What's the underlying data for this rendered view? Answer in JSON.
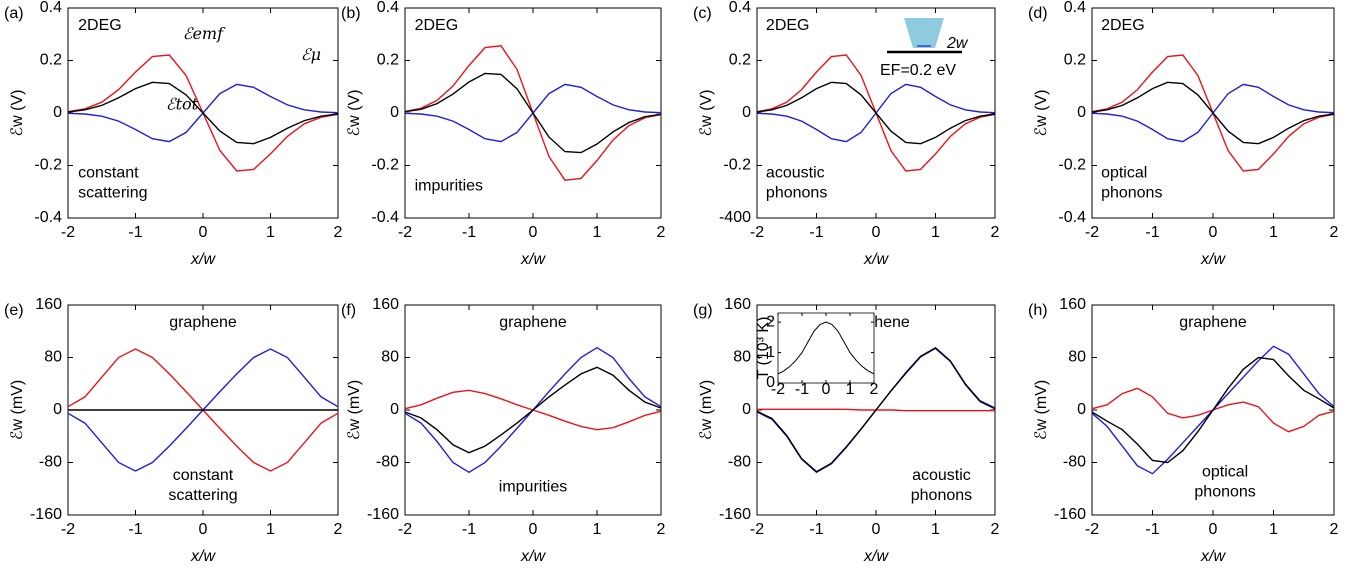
{
  "chart_data": [
    {
      "type": "line",
      "label": "(a)",
      "ylabel": "ℰw (V)",
      "xlabel": "x/w",
      "annotation": "2DEG",
      "note": [
        "constant",
        "scattering"
      ],
      "x": [
        -2,
        -1.75,
        -1.5,
        -1.25,
        -1,
        -0.75,
        -0.5,
        -0.25,
        0,
        0.25,
        0.5,
        0.75,
        1,
        1.25,
        1.5,
        1.75,
        2
      ],
      "xlim": [
        -2,
        2
      ],
      "xticks": [
        -2,
        -1,
        0,
        1,
        2
      ],
      "ylim": [
        -0.4,
        0.4
      ],
      "yticks": [
        -0.4,
        -0.2,
        0,
        0.2,
        0.4
      ],
      "series": [
        {
          "name": "ℰemf",
          "color": "#e8141c",
          "values": [
            0.005,
            0.016,
            0.041,
            0.089,
            0.156,
            0.215,
            0.221,
            0.143,
            0,
            -0.143,
            -0.221,
            -0.215,
            -0.156,
            -0.089,
            -0.041,
            -0.016,
            -0.005
          ]
        },
        {
          "name": "ℰμ",
          "color": "#1f1fd6",
          "values": [
            -0.001,
            -0.004,
            -0.012,
            -0.031,
            -0.063,
            -0.098,
            -0.109,
            -0.074,
            0,
            0.074,
            0.109,
            0.098,
            0.063,
            0.031,
            0.012,
            0.004,
            0.001
          ]
        },
        {
          "name": "ℰtot",
          "color": "#000000",
          "values": [
            0.004,
            0.012,
            0.029,
            0.058,
            0.093,
            0.117,
            0.112,
            0.069,
            0,
            -0.069,
            -0.112,
            -0.117,
            -0.093,
            -0.058,
            -0.029,
            -0.012,
            -0.004
          ]
        }
      ]
    },
    {
      "type": "line",
      "label": "(b)",
      "ylabel": "ℰw (V)",
      "xlabel": "x/w",
      "annotation": "2DEG",
      "note": [
        "impurities"
      ],
      "x": [
        -2,
        -1.75,
        -1.5,
        -1.25,
        -1,
        -0.75,
        -0.5,
        -0.25,
        0,
        0.25,
        0.5,
        0.75,
        1,
        1.25,
        1.5,
        1.75,
        2
      ],
      "xlim": [
        -2,
        2
      ],
      "xticks": [
        -2,
        -1,
        0,
        1,
        2
      ],
      "ylim": [
        -0.4,
        0.4
      ],
      "yticks": [
        -0.4,
        -0.2,
        0,
        0.2,
        0.4
      ],
      "series": [
        {
          "color": "#e8141c",
          "values": [
            0.006,
            0.018,
            0.048,
            0.103,
            0.181,
            0.249,
            0.256,
            0.166,
            0,
            -0.166,
            -0.256,
            -0.249,
            -0.181,
            -0.103,
            -0.048,
            -0.018,
            -0.006
          ]
        },
        {
          "color": "#1f1fd6",
          "values": [
            -0.001,
            -0.004,
            -0.012,
            -0.031,
            -0.063,
            -0.098,
            -0.109,
            -0.074,
            0,
            0.074,
            0.109,
            0.098,
            0.063,
            0.031,
            0.012,
            0.004,
            0.001
          ]
        },
        {
          "color": "#000000",
          "values": [
            0.005,
            0.014,
            0.036,
            0.072,
            0.118,
            0.151,
            0.147,
            0.092,
            0,
            -0.092,
            -0.147,
            -0.151,
            -0.118,
            -0.072,
            -0.036,
            -0.014,
            -0.005
          ]
        }
      ]
    },
    {
      "type": "line",
      "label": "(c)",
      "ylabel": "ℰw (V)",
      "xlabel": "x/w",
      "annotation": "2DEG",
      "note": [
        "acoustic",
        "phonons"
      ],
      "inset_labels": [
        "2w",
        "EF=0.2 eV"
      ],
      "x": [
        -2,
        -1.75,
        -1.5,
        -1.25,
        -1,
        -0.75,
        -0.5,
        -0.25,
        0,
        0.25,
        0.5,
        0.75,
        1,
        1.25,
        1.5,
        1.75,
        2
      ],
      "xlim": [
        -2,
        2
      ],
      "xticks": [
        -2,
        -1,
        0,
        1,
        2
      ],
      "ylim": [
        -0.4,
        0.4
      ],
      "yticks": [
        {
          "value": -0.4,
          "label": "-400"
        },
        -0.2,
        0,
        0.2,
        0.4
      ],
      "series": [
        {
          "color": "#e8141c",
          "values": [
            0.005,
            0.016,
            0.041,
            0.089,
            0.156,
            0.215,
            0.221,
            0.143,
            0,
            -0.143,
            -0.221,
            -0.215,
            -0.156,
            -0.089,
            -0.041,
            -0.016,
            -0.005
          ]
        },
        {
          "color": "#1f1fd6",
          "values": [
            -0.001,
            -0.004,
            -0.012,
            -0.031,
            -0.063,
            -0.098,
            -0.109,
            -0.074,
            0,
            0.074,
            0.109,
            0.098,
            0.063,
            0.031,
            0.012,
            0.004,
            0.001
          ]
        },
        {
          "color": "#000000",
          "values": [
            0.004,
            0.012,
            0.029,
            0.058,
            0.093,
            0.117,
            0.112,
            0.069,
            0,
            -0.069,
            -0.112,
            -0.117,
            -0.093,
            -0.058,
            -0.029,
            -0.012,
            -0.004
          ]
        }
      ]
    },
    {
      "type": "line",
      "label": "(d)",
      "ylabel": "ℰw (V)",
      "xlabel": "x/w",
      "annotation": "2DEG",
      "note": [
        "optical",
        "phonons"
      ],
      "x": [
        -2,
        -1.75,
        -1.5,
        -1.25,
        -1,
        -0.75,
        -0.5,
        -0.25,
        0,
        0.25,
        0.5,
        0.75,
        1,
        1.25,
        1.5,
        1.75,
        2
      ],
      "xlim": [
        -2,
        2
      ],
      "xticks": [
        -2,
        -1,
        0,
        1,
        2
      ],
      "ylim": [
        -0.4,
        0.4
      ],
      "yticks": [
        -0.4,
        -0.2,
        0,
        0.2,
        0.4
      ],
      "series": [
        {
          "color": "#e8141c",
          "values": [
            0.005,
            0.016,
            0.041,
            0.089,
            0.156,
            0.215,
            0.221,
            0.143,
            0,
            -0.143,
            -0.221,
            -0.215,
            -0.156,
            -0.089,
            -0.041,
            -0.016,
            -0.005
          ]
        },
        {
          "color": "#1f1fd6",
          "values": [
            -0.001,
            -0.004,
            -0.012,
            -0.031,
            -0.063,
            -0.098,
            -0.109,
            -0.074,
            0,
            0.074,
            0.109,
            0.098,
            0.063,
            0.031,
            0.012,
            0.004,
            0.001
          ]
        },
        {
          "color": "#000000",
          "values": [
            0.004,
            0.012,
            0.029,
            0.058,
            0.093,
            0.117,
            0.112,
            0.069,
            0,
            -0.069,
            -0.112,
            -0.117,
            -0.093,
            -0.058,
            -0.029,
            -0.012,
            -0.004
          ]
        }
      ]
    },
    {
      "type": "line",
      "label": "(e)",
      "ylabel": "ℰw (mV)",
      "xlabel": "x/w",
      "annotation": "graphene",
      "note": [
        "constant",
        "scattering"
      ],
      "x": [
        -2,
        -1.75,
        -1.5,
        -1.25,
        -1,
        -0.75,
        -0.5,
        -0.25,
        0,
        0.25,
        0.5,
        0.75,
        1,
        1.25,
        1.5,
        1.75,
        2
      ],
      "xlim": [
        -2,
        2
      ],
      "xticks": [
        -2,
        -1,
        0,
        1,
        2
      ],
      "ylim": [
        -160,
        160
      ],
      "yticks": [
        -160,
        -80,
        0,
        80,
        160
      ],
      "series": [
        {
          "color": "#e8141c",
          "values": [
            5,
            20,
            50,
            80,
            93,
            80,
            55,
            28,
            0,
            -28,
            -55,
            -80,
            -93,
            -80,
            -50,
            -20,
            -5
          ]
        },
        {
          "color": "#1f1fd6",
          "values": [
            -5,
            -20,
            -50,
            -80,
            -93,
            -80,
            -55,
            -28,
            0,
            28,
            55,
            80,
            93,
            80,
            50,
            20,
            5
          ]
        },
        {
          "color": "#000000",
          "values": [
            0,
            0,
            0,
            0,
            0,
            0,
            0,
            0,
            0,
            0,
            0,
            0,
            0,
            0,
            0,
            0,
            0
          ]
        }
      ]
    },
    {
      "type": "line",
      "label": "(f)",
      "ylabel": "ℰw (mV)",
      "xlabel": "x/w",
      "annotation": "graphene",
      "note": [
        "impurities"
      ],
      "x": [
        -2,
        -1.75,
        -1.5,
        -1.25,
        -1,
        -0.75,
        -0.5,
        -0.25,
        0,
        0.25,
        0.5,
        0.75,
        1,
        1.25,
        1.5,
        1.75,
        2
      ],
      "xlim": [
        -2,
        2
      ],
      "xticks": [
        -2,
        -1,
        0,
        1,
        2
      ],
      "ylim": [
        -160,
        160
      ],
      "yticks": [
        -160,
        -80,
        0,
        80,
        160
      ],
      "series": [
        {
          "color": "#e8141c",
          "values": [
            2,
            8,
            18,
            27,
            30,
            25,
            17,
            8,
            0,
            -8,
            -17,
            -25,
            -30,
            -27,
            -18,
            -8,
            -2
          ]
        },
        {
          "color": "#1f1fd6",
          "values": [
            -5,
            -20,
            -48,
            -80,
            -95,
            -80,
            -55,
            -28,
            0,
            28,
            55,
            80,
            95,
            80,
            48,
            20,
            5
          ]
        },
        {
          "color": "#000000",
          "values": [
            -3,
            -12,
            -30,
            -53,
            -65,
            -55,
            -38,
            -20,
            0,
            20,
            38,
            55,
            65,
            53,
            30,
            12,
            3
          ]
        }
      ]
    },
    {
      "type": "line",
      "label": "(g)",
      "ylabel": "ℰw (mV)",
      "xlabel": "x/w",
      "annotation": "graphene",
      "note": [
        "acoustic",
        "phonons"
      ],
      "x": [
        -2,
        -1.75,
        -1.5,
        -1.25,
        -1,
        -0.75,
        -0.5,
        -0.25,
        0,
        0.25,
        0.5,
        0.75,
        1,
        1.25,
        1.5,
        1.75,
        2
      ],
      "xlim": [
        -2,
        2
      ],
      "xticks": [
        -2,
        -1,
        0,
        1,
        2
      ],
      "ylim": [
        -160,
        160
      ],
      "yticks": [
        -160,
        -80,
        0,
        80,
        160
      ],
      "series": [
        {
          "color": "#e8141c",
          "values": [
            1,
            1,
            1,
            1,
            1,
            1,
            1,
            0,
            0,
            0,
            -1,
            -1,
            -1,
            -1,
            -1,
            -1,
            -1
          ]
        },
        {
          "color": "#1f1fd6",
          "values": [
            -3,
            -14,
            -40,
            -75,
            -95,
            -82,
            -57,
            -29,
            0,
            29,
            57,
            82,
            95,
            75,
            40,
            14,
            3
          ]
        },
        {
          "color": "#000000",
          "values": [
            -2,
            -13,
            -39,
            -74,
            -94,
            -81,
            -56,
            -29,
            0,
            29,
            56,
            81,
            94,
            74,
            39,
            13,
            2
          ]
        }
      ]
    },
    {
      "type": "line",
      "label": "(h)",
      "ylabel": "ℰw (mV)",
      "xlabel": "x/w",
      "annotation": "graphene",
      "note": [
        "optical",
        "phonons"
      ],
      "x": [
        -2,
        -1.75,
        -1.5,
        -1.25,
        -1,
        -0.75,
        -0.5,
        -0.25,
        0,
        0.25,
        0.5,
        0.75,
        1,
        1.25,
        1.5,
        1.75,
        2
      ],
      "xlim": [
        -2,
        2
      ],
      "xticks": [
        -2,
        -1,
        0,
        1,
        2
      ],
      "ylim": [
        -160,
        160
      ],
      "yticks": [
        -160,
        -80,
        0,
        80,
        160
      ],
      "series": [
        {
          "color": "#e8141c",
          "values": [
            2,
            8,
            25,
            33,
            20,
            -5,
            -12,
            -8,
            0,
            8,
            12,
            5,
            -20,
            -33,
            -25,
            -8,
            -2
          ]
        },
        {
          "color": "#1f1fd6",
          "values": [
            -5,
            -25,
            -55,
            -85,
            -97,
            -75,
            -50,
            -25,
            0,
            25,
            50,
            75,
            97,
            85,
            55,
            25,
            5
          ]
        },
        {
          "color": "#000000",
          "values": [
            -3,
            -17,
            -30,
            -52,
            -77,
            -80,
            -62,
            -33,
            0,
            33,
            62,
            80,
            77,
            52,
            30,
            17,
            3
          ]
        }
      ]
    },
    {
      "type": "line",
      "ylabel": "T (10³ K)",
      "x": [
        -2,
        -1.75,
        -1.5,
        -1.25,
        -1,
        -0.75,
        -0.5,
        -0.25,
        0,
        0.25,
        0.5,
        0.75,
        1,
        1.25,
        1.5,
        1.75,
        2
      ],
      "xlim": [
        -2,
        2
      ],
      "xticks": [
        -2,
        -1,
        0,
        1,
        2
      ],
      "ylim": [
        0,
        2.3
      ],
      "yticks": [
        0,
        1,
        2
      ],
      "series": [
        {
          "color": "#000000",
          "values": [
            0.3,
            0.4,
            0.55,
            0.75,
            1.0,
            1.35,
            1.7,
            1.92,
            2.0,
            1.92,
            1.7,
            1.35,
            1.0,
            0.75,
            0.55,
            0.4,
            0.3
          ]
        }
      ]
    }
  ]
}
